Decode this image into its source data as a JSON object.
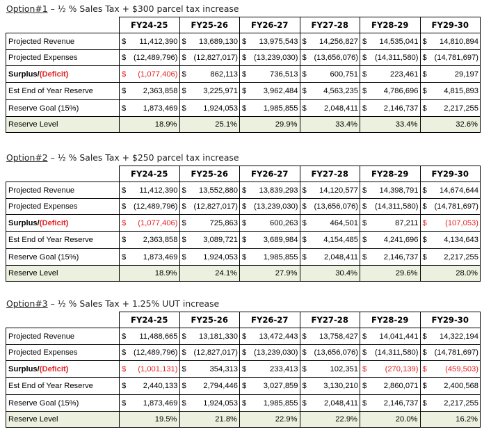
{
  "columns": [
    "FY24-25",
    "FY25-26",
    "FY26-27",
    "FY27-28",
    "FY28-29",
    "FY29-30"
  ],
  "options": [
    {
      "number": "Option#1",
      "rest": " –  ½ % Sales Tax + $300 parcel tax increase",
      "rows": {
        "revenue": {
          "label": "Projected Revenue",
          "cells": [
            {
              "cur": "$",
              "num": "11,412,390",
              "red": false
            },
            {
              "cur": "$",
              "num": "13,689,130",
              "red": false
            },
            {
              "cur": "$",
              "num": "13,975,543",
              "red": false
            },
            {
              "cur": "$",
              "num": "14,256,827",
              "red": false
            },
            {
              "cur": "$",
              "num": "14,535,041",
              "red": false
            },
            {
              "cur": "$",
              "num": "14,810,894",
              "red": false
            }
          ]
        },
        "expenses": {
          "label": "Projected Expenses",
          "cells": [
            {
              "cur": "$",
              "num": "(12,489,796)",
              "red": false
            },
            {
              "cur": "$",
              "num": "(12,827,017)",
              "red": false
            },
            {
              "cur": "$",
              "num": "(13,239,030)",
              "red": false
            },
            {
              "cur": "$",
              "num": "(13,656,076)",
              "red": false
            },
            {
              "cur": "$",
              "num": "(14,311,580)",
              "red": false
            },
            {
              "cur": "$",
              "num": "(14,781,697)",
              "red": false
            }
          ]
        },
        "surplus": {
          "label_a": "Surplus/",
          "label_b": "(Deficit)",
          "cells": [
            {
              "cur": "$",
              "num": "(1,077,406)",
              "red": true
            },
            {
              "cur": "$",
              "num": "862,113",
              "red": false
            },
            {
              "cur": "$",
              "num": "736,513",
              "red": false
            },
            {
              "cur": "$",
              "num": "600,751",
              "red": false
            },
            {
              "cur": "$",
              "num": "223,461",
              "red": false
            },
            {
              "cur": "$",
              "num": "29,197",
              "red": false
            }
          ]
        },
        "reserve": {
          "label": "Est End of Year Reserve",
          "cells": [
            {
              "cur": "$",
              "num": "2,363,858",
              "red": false
            },
            {
              "cur": "$",
              "num": "3,225,971",
              "red": false
            },
            {
              "cur": "$",
              "num": "3,962,484",
              "red": false
            },
            {
              "cur": "$",
              "num": "4,563,235",
              "red": false
            },
            {
              "cur": "$",
              "num": "4,786,696",
              "red": false
            },
            {
              "cur": "$",
              "num": "4,815,893",
              "red": false
            }
          ]
        },
        "goal": {
          "label": "Reserve Goal (15%)",
          "cells": [
            {
              "cur": "$",
              "num": "1,873,469",
              "red": false
            },
            {
              "cur": "$",
              "num": "1,924,053",
              "red": false
            },
            {
              "cur": "$",
              "num": "1,985,855",
              "red": false
            },
            {
              "cur": "$",
              "num": "2,048,411",
              "red": false
            },
            {
              "cur": "$",
              "num": "2,146,737",
              "red": false
            },
            {
              "cur": "$",
              "num": "2,217,255",
              "red": false
            }
          ]
        },
        "level": {
          "label": "Reserve Level",
          "cells": [
            "18.9%",
            "25.1%",
            "29.9%",
            "33.4%",
            "33.4%",
            "32.6%"
          ]
        }
      }
    },
    {
      "number": "Option#2",
      "rest": " –  ½ % Sales Tax + $250 parcel tax increase",
      "rows": {
        "revenue": {
          "label": "Projected Revenue",
          "cells": [
            {
              "cur": "$",
              "num": "11,412,390",
              "red": false
            },
            {
              "cur": "$",
              "num": "13,552,880",
              "red": false
            },
            {
              "cur": "$",
              "num": "13,839,293",
              "red": false
            },
            {
              "cur": "$",
              "num": "14,120,577",
              "red": false
            },
            {
              "cur": "$",
              "num": "14,398,791",
              "red": false
            },
            {
              "cur": "$",
              "num": "14,674,644",
              "red": false
            }
          ]
        },
        "expenses": {
          "label": "Projected Expenses",
          "cells": [
            {
              "cur": "$",
              "num": "(12,489,796)",
              "red": false
            },
            {
              "cur": "$",
              "num": "(12,827,017)",
              "red": false
            },
            {
              "cur": "$",
              "num": "(13,239,030)",
              "red": false
            },
            {
              "cur": "$",
              "num": "(13,656,076)",
              "red": false
            },
            {
              "cur": "$",
              "num": "(14,311,580)",
              "red": false
            },
            {
              "cur": "$",
              "num": "(14,781,697)",
              "red": false
            }
          ]
        },
        "surplus": {
          "label_a": "Surplus/",
          "label_b": "(Deficit)",
          "cells": [
            {
              "cur": "$",
              "num": "(1,077,406)",
              "red": true
            },
            {
              "cur": "$",
              "num": "725,863",
              "red": false
            },
            {
              "cur": "$",
              "num": "600,263",
              "red": false
            },
            {
              "cur": "$",
              "num": "464,501",
              "red": false
            },
            {
              "cur": "$",
              "num": "87,211",
              "red": false
            },
            {
              "cur": "$",
              "num": "(107,053)",
              "red": true
            }
          ]
        },
        "reserve": {
          "label": "Est End of Year Reserve",
          "cells": [
            {
              "cur": "$",
              "num": "2,363,858",
              "red": false
            },
            {
              "cur": "$",
              "num": "3,089,721",
              "red": false
            },
            {
              "cur": "$",
              "num": "3,689,984",
              "red": false
            },
            {
              "cur": "$",
              "num": "4,154,485",
              "red": false
            },
            {
              "cur": "$",
              "num": "4,241,696",
              "red": false
            },
            {
              "cur": "$",
              "num": "4,134,643",
              "red": false
            }
          ]
        },
        "goal": {
          "label": "Reserve Goal (15%)",
          "cells": [
            {
              "cur": "$",
              "num": "1,873,469",
              "red": false
            },
            {
              "cur": "$",
              "num": "1,924,053",
              "red": false
            },
            {
              "cur": "$",
              "num": "1,985,855",
              "red": false
            },
            {
              "cur": "$",
              "num": "2,048,411",
              "red": false
            },
            {
              "cur": "$",
              "num": "2,146,737",
              "red": false
            },
            {
              "cur": "$",
              "num": "2,217,255",
              "red": false
            }
          ]
        },
        "level": {
          "label": "Reserve Level",
          "cells": [
            "18.9%",
            "24.1%",
            "27.9%",
            "30.4%",
            "29.6%",
            "28.0%"
          ]
        }
      }
    },
    {
      "number": "Option#3",
      "rest": " –  ½ % Sales Tax + 1.25% UUT increase",
      "rows": {
        "revenue": {
          "label": "Projected Revenue",
          "cells": [
            {
              "cur": "$",
              "num": "11,488,665",
              "red": false
            },
            {
              "cur": "$",
              "num": "13,181,330",
              "red": false
            },
            {
              "cur": "$",
              "num": "13,472,443",
              "red": false
            },
            {
              "cur": "$",
              "num": "13,758,427",
              "red": false
            },
            {
              "cur": "$",
              "num": "14,041,441",
              "red": false
            },
            {
              "cur": "$",
              "num": "14,322,194",
              "red": false
            }
          ]
        },
        "expenses": {
          "label": "Projected Expenses",
          "cells": [
            {
              "cur": "$",
              "num": "(12,489,796)",
              "red": false
            },
            {
              "cur": "$",
              "num": "(12,827,017)",
              "red": false
            },
            {
              "cur": "$",
              "num": "(13,239,030)",
              "red": false
            },
            {
              "cur": "$",
              "num": "(13,656,076)",
              "red": false
            },
            {
              "cur": "$",
              "num": "(14,311,580)",
              "red": false
            },
            {
              "cur": "$",
              "num": "(14,781,697)",
              "red": false
            }
          ]
        },
        "surplus": {
          "label_a": "Surplus/",
          "label_b": "(Deficit)",
          "cells": [
            {
              "cur": "$",
              "num": "(1,001,131)",
              "red": true
            },
            {
              "cur": "$",
              "num": "354,313",
              "red": false
            },
            {
              "cur": "$",
              "num": "233,413",
              "red": false
            },
            {
              "cur": "$",
              "num": "102,351",
              "red": false
            },
            {
              "cur": "$",
              "num": "(270,139)",
              "red": true
            },
            {
              "cur": "$",
              "num": "(459,503)",
              "red": true
            }
          ]
        },
        "reserve": {
          "label": "Est End of Year Reserve",
          "cells": [
            {
              "cur": "$",
              "num": "2,440,133",
              "red": false
            },
            {
              "cur": "$",
              "num": "2,794,446",
              "red": false
            },
            {
              "cur": "$",
              "num": "3,027,859",
              "red": false
            },
            {
              "cur": "$",
              "num": "3,130,210",
              "red": false
            },
            {
              "cur": "$",
              "num": "2,860,071",
              "red": false
            },
            {
              "cur": "$",
              "num": "2,400,568",
              "red": false
            }
          ]
        },
        "goal": {
          "label": "Reserve Goal (15%)",
          "cells": [
            {
              "cur": "$",
              "num": "1,873,469",
              "red": false
            },
            {
              "cur": "$",
              "num": "1,924,053",
              "red": false
            },
            {
              "cur": "$",
              "num": "1,985,855",
              "red": false
            },
            {
              "cur": "$",
              "num": "2,048,411",
              "red": false
            },
            {
              "cur": "$",
              "num": "2,146,737",
              "red": false
            },
            {
              "cur": "$",
              "num": "2,217,255",
              "red": false
            }
          ]
        },
        "level": {
          "label": "Reserve Level",
          "cells": [
            "19.5%",
            "21.8%",
            "22.9%",
            "22.9%",
            "20.0%",
            "16.2%"
          ]
        }
      }
    }
  ],
  "colors": {
    "deficit_red": "#e32222",
    "reserve_level_fill": "#ebf1de"
  }
}
